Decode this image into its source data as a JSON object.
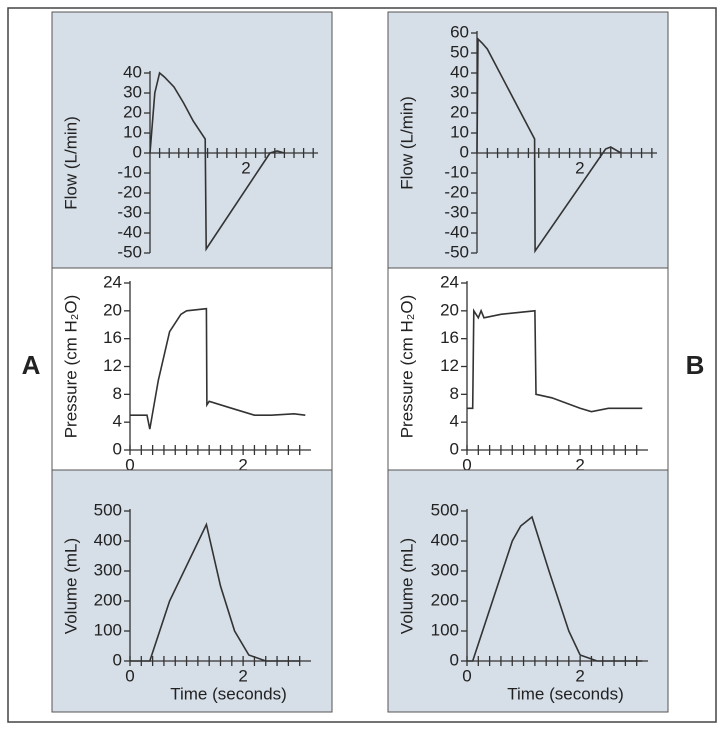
{
  "panel_labels": [
    "A",
    "B"
  ],
  "chart_data": [
    {
      "type": "line",
      "y_label": "Flow (L/min)",
      "color": "#333",
      "x": [
        0,
        0.1,
        0.2,
        0.3,
        0.5,
        0.7,
        0.9,
        1.15,
        1.17,
        2.5,
        2.65,
        2.8
      ],
      "values": [
        0,
        30,
        40,
        38,
        33,
        25,
        16,
        7,
        -48,
        0,
        1,
        0
      ],
      "xlim": [
        0,
        3.5
      ],
      "ylim": [
        -50,
        40
      ],
      "xticks": [
        2
      ],
      "xticks_minor": [
        0.2,
        0.4,
        0.6,
        0.8,
        1,
        1.2,
        1.4,
        1.6,
        1.8,
        2.2,
        2.4,
        2.6,
        2.8,
        3,
        3.2,
        3.4
      ],
      "yticks": [
        -50,
        -40,
        -30,
        -20,
        -10,
        0,
        10,
        20,
        30,
        40
      ]
    },
    {
      "type": "line",
      "y_label": "Pressure (cm H₂O)",
      "color": "#333",
      "x": [
        0,
        0.3,
        0.35,
        0.5,
        0.7,
        0.9,
        1.0,
        1.35,
        1.36,
        1.4,
        1.8,
        2.2,
        2.5,
        2.9,
        3.1
      ],
      "values": [
        5,
        5,
        3,
        10,
        17,
        19.5,
        20,
        20.3,
        6.5,
        7,
        6,
        5,
        5,
        5.2,
        5
      ],
      "xlim": [
        0,
        3.2
      ],
      "ylim": [
        0,
        24
      ],
      "xticks": [
        0,
        2
      ],
      "xticks_minor": [
        0.2,
        0.4,
        0.6,
        0.8,
        1,
        1.2,
        1.4,
        1.6,
        1.8,
        2.2,
        2.4,
        2.6,
        2.8,
        3
      ],
      "yticks": [
        0,
        4,
        8,
        12,
        16,
        20,
        24
      ]
    },
    {
      "type": "line",
      "y_label": "Volume (mL)",
      "x_label": "Time (seconds)",
      "color": "#333",
      "x": [
        0,
        0.35,
        0.7,
        1.35,
        1.6,
        1.85,
        2.1,
        2.4,
        3.0
      ],
      "values": [
        0,
        0,
        200,
        455,
        250,
        100,
        20,
        0,
        0
      ],
      "xlim": [
        0,
        3.2
      ],
      "ylim": [
        0,
        500
      ],
      "xticks": [
        0,
        2
      ],
      "xticks_minor": [
        0.2,
        0.4,
        0.6,
        0.8,
        1,
        1.2,
        1.4,
        1.6,
        1.8,
        2.2,
        2.4,
        2.6,
        2.8,
        3
      ],
      "yticks": [
        0,
        100,
        200,
        300,
        400,
        500
      ]
    },
    {
      "type": "line",
      "y_label": "Flow (L/min)",
      "color": "#333",
      "x": [
        0,
        0.02,
        0.1,
        0.2,
        1.12,
        1.13,
        2.5,
        2.6,
        2.8
      ],
      "values": [
        0,
        57,
        55,
        52,
        7,
        -49,
        2,
        3,
        0
      ],
      "xlim": [
        0,
        3.5
      ],
      "ylim": [
        -50,
        60
      ],
      "xticks": [
        2
      ],
      "xticks_minor": [
        0.2,
        0.4,
        0.6,
        0.8,
        1,
        1.2,
        1.4,
        1.6,
        1.8,
        2.2,
        2.4,
        2.6,
        2.8,
        3,
        3.2,
        3.4
      ],
      "yticks": [
        -50,
        -40,
        -30,
        -20,
        -10,
        0,
        10,
        20,
        30,
        40,
        50,
        60
      ]
    },
    {
      "type": "line",
      "y_label": "Pressure (cm H₂O)",
      "color": "#333",
      "x": [
        0,
        0.1,
        0.12,
        0.2,
        0.25,
        0.3,
        0.6,
        1.2,
        1.22,
        1.5,
        2.0,
        2.2,
        2.5,
        3.1
      ],
      "values": [
        6,
        6,
        20,
        19,
        20,
        19,
        19.5,
        20,
        8,
        7.5,
        6,
        5.5,
        6,
        6
      ],
      "xlim": [
        0,
        3.2
      ],
      "ylim": [
        0,
        24
      ],
      "xticks": [
        0,
        2
      ],
      "xticks_minor": [
        0.2,
        0.4,
        0.6,
        0.8,
        1,
        1.2,
        1.4,
        1.6,
        1.8,
        2.2,
        2.4,
        2.6,
        2.8,
        3
      ],
      "yticks": [
        0,
        4,
        8,
        12,
        16,
        20,
        24
      ]
    },
    {
      "type": "line",
      "y_label": "Volume (mL)",
      "x_label": "Time (seconds)",
      "color": "#333",
      "x": [
        0,
        0.1,
        0.45,
        0.8,
        0.95,
        1.15,
        1.45,
        1.8,
        2.0,
        2.3,
        3.1
      ],
      "values": [
        0,
        0,
        200,
        400,
        450,
        480,
        300,
        100,
        20,
        0,
        0
      ],
      "xlim": [
        0,
        3.2
      ],
      "ylim": [
        0,
        500
      ],
      "xticks": [
        0,
        2
      ],
      "xticks_minor": [
        0.2,
        0.4,
        0.6,
        0.8,
        1,
        1.2,
        1.4,
        1.6,
        1.8,
        2.2,
        2.4,
        2.6,
        2.8,
        3
      ],
      "yticks": [
        0,
        100,
        200,
        300,
        400,
        500
      ]
    }
  ]
}
